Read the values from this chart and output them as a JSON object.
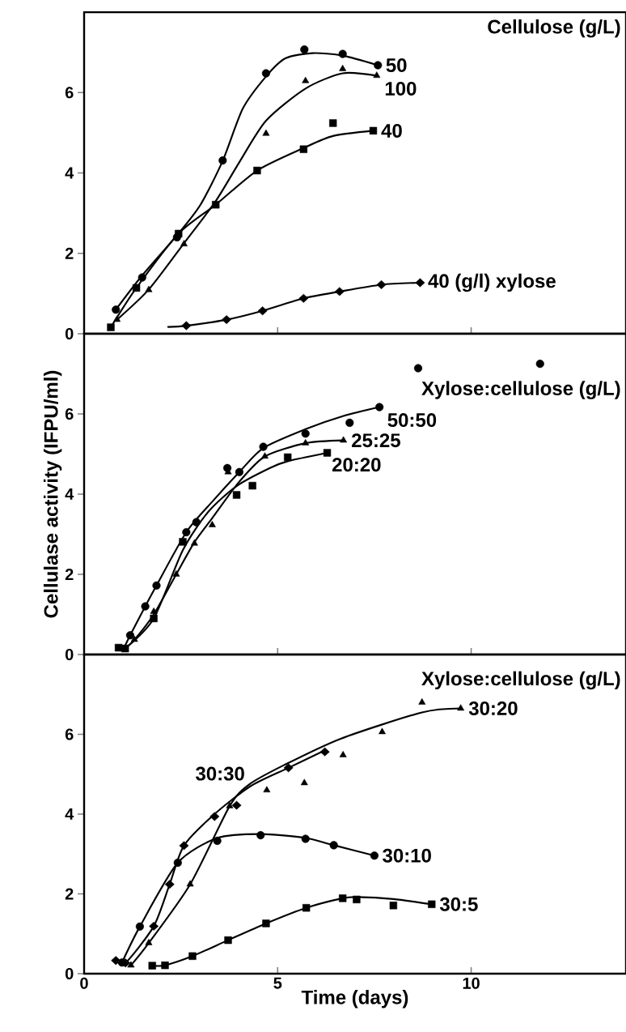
{
  "chart_data": [
    {
      "type": "line",
      "title": "Cellulose (g/L)",
      "xlim": [
        0,
        14
      ],
      "ylim": [
        0,
        8
      ],
      "xticks": [
        0,
        5,
        10
      ],
      "yticks": [
        0,
        2,
        4,
        6
      ],
      "tick_labels": "y",
      "series": [
        {
          "type": "scatter",
          "marker": "circle",
          "color": "#000000",
          "x": [
            0.82,
            1.5,
            2.4,
            3.58,
            4.7,
            5.69,
            6.68,
            7.59
          ],
          "values": [
            0.6,
            1.4,
            2.4,
            4.31,
            6.48,
            7.07,
            6.96,
            6.68
          ]
        },
        {
          "name": "50",
          "marker": "none",
          "color": "#000000",
          "x": [
            0.82,
            1.5,
            2.4,
            3.0,
            3.58,
            4.1,
            4.7,
            5.2,
            5.9,
            6.68,
            7.59
          ],
          "values": [
            0.6,
            1.45,
            2.45,
            3.2,
            4.3,
            5.6,
            6.4,
            6.85,
            6.98,
            6.92,
            6.68
          ]
        },
        {
          "type": "scatter",
          "marker": "triangle",
          "color": "#000000",
          "x": [
            0.85,
            1.67,
            2.58,
            4.7,
            5.72,
            6.68,
            7.56
          ],
          "values": [
            0.35,
            1.09,
            2.23,
            4.98,
            6.29,
            6.59,
            6.42
          ]
        },
        {
          "name": "100",
          "marker": "none",
          "color": "#000000",
          "x": [
            0.85,
            1.67,
            2.58,
            3.4,
            4.0,
            4.7,
            5.72,
            6.68,
            7.56
          ],
          "values": [
            0.35,
            1.1,
            2.25,
            3.3,
            4.25,
            5.3,
            6.1,
            6.48,
            6.42
          ]
        },
        {
          "type": "scatter",
          "marker": "square",
          "color": "#000000",
          "x": [
            0.69,
            1.35,
            2.44,
            3.4,
            4.47,
            5.67,
            6.43,
            7.47
          ],
          "values": [
            0.16,
            1.14,
            2.49,
            3.21,
            4.06,
            4.59,
            5.24,
            5.05
          ]
        },
        {
          "name": "40",
          "marker": "none",
          "color": "#000000",
          "x": [
            0.69,
            1.35,
            2.44,
            3.4,
            4.47,
            5.67,
            6.43,
            7.47
          ],
          "values": [
            0.16,
            1.14,
            2.49,
            3.21,
            4.06,
            4.62,
            4.92,
            5.05
          ]
        },
        {
          "type": "scatter",
          "marker": "diamond",
          "color": "#000000",
          "x": [
            2.64,
            3.68,
            4.61,
            5.67,
            6.6,
            7.68,
            8.68
          ],
          "values": [
            0.2,
            0.35,
            0.57,
            0.88,
            1.05,
            1.22,
            1.27
          ]
        },
        {
          "name": "40 (g/l) xylose",
          "marker": "none",
          "color": "#000000",
          "x": [
            2.17,
            2.64,
            3.68,
            4.61,
            5.67,
            6.6,
            7.68,
            8.68
          ],
          "values": [
            0.17,
            0.2,
            0.35,
            0.57,
            0.88,
            1.05,
            1.22,
            1.27
          ]
        }
      ]
    },
    {
      "type": "line",
      "title": "Xylose:cellulose (g/L)",
      "ylabel": "Cellulase activity (IFPU/ml)",
      "xlim": [
        0,
        14
      ],
      "ylim": [
        0,
        8
      ],
      "xticks": [
        0,
        5,
        10
      ],
      "yticks": [
        0,
        2,
        4,
        6
      ],
      "tick_labels": "y",
      "series": [
        {
          "type": "scatter",
          "marker": "circle",
          "color": "#000000",
          "x": [
            1.19,
            1.58,
            1.87,
            2.64,
            2.9,
            3.7,
            4.01,
            4.63,
            5.72,
            6.86,
            7.63,
            8.63,
            11.78
          ],
          "values": [
            0.48,
            1.2,
            1.72,
            3.05,
            3.3,
            4.65,
            4.55,
            5.18,
            5.51,
            5.78,
            6.17,
            7.14,
            7.25
          ]
        },
        {
          "name": "50:50",
          "marker": "none",
          "color": "#000000",
          "x": [
            1.0,
            1.19,
            1.58,
            1.87,
            2.64,
            3.3,
            4.01,
            4.63,
            5.72,
            6.7,
            7.63
          ],
          "values": [
            0.1,
            0.48,
            1.2,
            1.72,
            3.05,
            3.8,
            4.55,
            5.15,
            5.62,
            5.95,
            6.17
          ]
        },
        {
          "type": "scatter",
          "marker": "triangle",
          "color": "#000000",
          "x": [
            1.3,
            1.8,
            2.38,
            2.85,
            3.31,
            3.72,
            4.67,
            5.72,
            6.7
          ],
          "values": [
            0.37,
            1.07,
            2.0,
            2.77,
            3.23,
            4.55,
            4.94,
            5.27,
            5.34
          ]
        },
        {
          "name": "25:25",
          "marker": "none",
          "color": "#000000",
          "x": [
            1.0,
            1.3,
            1.8,
            2.38,
            2.85,
            3.31,
            4.0,
            4.67,
            5.72,
            6.7
          ],
          "values": [
            0.1,
            0.37,
            1.0,
            2.0,
            2.8,
            3.4,
            4.3,
            4.94,
            5.27,
            5.34
          ]
        },
        {
          "type": "scatter",
          "marker": "square",
          "color": "#000000",
          "x": [
            0.89,
            1.06,
            1.8,
            2.55,
            3.94,
            4.35,
            5.26,
            6.28
          ],
          "values": [
            0.17,
            0.15,
            0.9,
            2.81,
            3.98,
            4.21,
            4.92,
            5.03
          ]
        },
        {
          "name": "20:20",
          "marker": "none",
          "color": "#000000",
          "x": [
            0.89,
            1.06,
            1.8,
            2.55,
            3.2,
            3.94,
            4.8,
            5.26,
            6.28
          ],
          "values": [
            0.17,
            0.15,
            0.9,
            2.6,
            3.55,
            4.2,
            4.65,
            4.82,
            5.03
          ]
        }
      ]
    },
    {
      "type": "line",
      "title": "Xylose:cellulose (g/L)",
      "xlabel": "Time (days)",
      "xlim": [
        0,
        14
      ],
      "ylim": [
        0,
        8
      ],
      "xticks": [
        0,
        5,
        10
      ],
      "yticks": [
        0,
        2,
        4,
        6
      ],
      "series": [
        {
          "type": "scatter",
          "marker": "diamond",
          "color": "#000000",
          "x": [
            0.82,
            1.07,
            1.8,
            2.21,
            2.58,
            3.37,
            3.94,
            5.28,
            6.22
          ],
          "values": [
            0.33,
            0.27,
            1.19,
            2.24,
            3.21,
            3.94,
            4.22,
            5.16,
            5.56
          ]
        },
        {
          "name": "30:30",
          "marker": "none",
          "color": "#000000",
          "x": [
            0.82,
            1.07,
            1.8,
            2.21,
            2.58,
            3.37,
            4.3,
            5.28,
            6.22
          ],
          "values": [
            0.33,
            0.27,
            1.19,
            2.24,
            3.21,
            4.0,
            4.7,
            5.16,
            5.6
          ]
        },
        {
          "type": "scatter",
          "marker": "circle",
          "color": "#000000",
          "x": [
            0.98,
            1.44,
            2.42,
            3.44,
            4.56,
            5.72,
            6.45,
            7.5
          ],
          "values": [
            0.28,
            1.18,
            2.78,
            3.33,
            3.47,
            3.38,
            3.22,
            2.96
          ]
        },
        {
          "name": "30:10",
          "marker": "none",
          "color": "#000000",
          "x": [
            0.98,
            1.44,
            2.42,
            3.44,
            4.56,
            5.72,
            6.45,
            7.5
          ],
          "values": [
            0.28,
            1.18,
            2.78,
            3.4,
            3.5,
            3.4,
            3.22,
            2.96
          ]
        },
        {
          "type": "scatter",
          "marker": "triangle",
          "color": "#000000",
          "x": [
            1.21,
            1.67,
            2.74,
            3.76,
            4.72,
            5.69,
            6.69,
            7.7,
            8.73,
            9.73
          ],
          "values": [
            0.21,
            0.77,
            2.24,
            4.2,
            4.6,
            4.78,
            5.48,
            6.06,
            6.8,
            6.65
          ]
        },
        {
          "name": "30:20",
          "marker": "none",
          "color": "#000000",
          "x": [
            1.21,
            1.67,
            2.74,
            3.76,
            4.26,
            5.17,
            6.63,
            8.73,
            9.73
          ],
          "values": [
            0.21,
            0.77,
            2.24,
            4.2,
            4.74,
            5.23,
            5.89,
            6.55,
            6.65
          ]
        },
        {
          "type": "scatter",
          "marker": "square",
          "color": "#000000",
          "x": [
            1.76,
            2.09,
            2.8,
            3.72,
            4.7,
            5.74,
            6.68,
            7.04,
            7.99,
            8.98
          ],
          "values": [
            0.2,
            0.21,
            0.44,
            0.84,
            1.26,
            1.65,
            1.89,
            1.86,
            1.71,
            1.74
          ]
        },
        {
          "name": "30:5",
          "marker": "none",
          "color": "#000000",
          "x": [
            1.76,
            2.09,
            2.8,
            3.72,
            4.7,
            5.74,
            6.68,
            7.04,
            7.99,
            8.98
          ],
          "values": [
            0.2,
            0.21,
            0.44,
            0.84,
            1.26,
            1.65,
            1.89,
            1.92,
            1.87,
            1.74
          ]
        }
      ]
    }
  ]
}
